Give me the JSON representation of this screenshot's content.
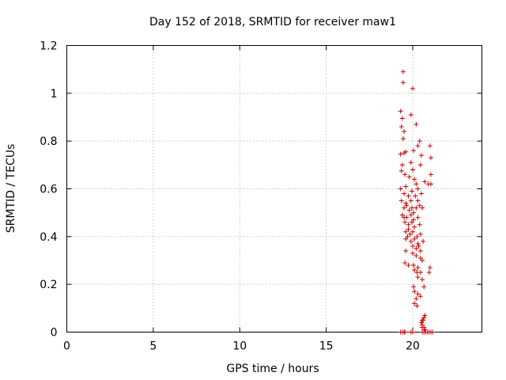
{
  "chart_data": {
    "type": "scatter",
    "title": "Day 152 of 2018, SRMTID for receiver maw1",
    "xlabel": "GPS time / hours",
    "ylabel": "SRMTID / TECUs",
    "xlim": [
      0,
      24
    ],
    "ylim": [
      0,
      1.2
    ],
    "xticks": [
      0,
      5,
      10,
      15,
      20
    ],
    "xtick_labels": [
      "0",
      "5",
      "10",
      "15",
      "20"
    ],
    "yticks": [
      0,
      0.2,
      0.4,
      0.6,
      0.8,
      1.0,
      1.2
    ],
    "ytick_labels": [
      "0",
      "0.2",
      "0.4",
      "0.6",
      "0.8",
      "1",
      "1.2"
    ],
    "grid": true,
    "marker": "+",
    "series": [
      {
        "name": "SRMTID",
        "color": "#cc0000",
        "x": [
          19.45,
          19.45,
          20.0,
          19.3,
          19.4,
          19.35,
          19.9,
          20.2,
          19.5,
          19.45,
          20.4,
          20.3,
          21.0,
          19.6,
          19.5,
          19.3,
          20.05,
          20.5,
          21.05,
          19.4,
          19.9,
          20.0,
          20.45,
          20.0,
          21.05,
          19.35,
          19.55,
          19.8,
          20.1,
          20.2,
          20.7,
          20.9,
          21.05,
          19.3,
          19.6,
          19.95,
          20.3,
          19.5,
          19.75,
          20.15,
          20.5,
          19.35,
          19.6,
          19.9,
          20.3,
          19.5,
          19.65,
          19.8,
          19.95,
          20.05,
          20.2,
          20.4,
          20.55,
          19.4,
          19.5,
          19.65,
          19.9,
          20.05,
          20.3,
          19.55,
          19.75,
          19.95,
          20.1,
          20.4,
          19.6,
          19.75,
          19.85,
          20.0,
          20.25,
          20.45,
          19.6,
          19.7,
          19.9,
          20.1,
          20.3,
          20.6,
          20.0,
          20.2,
          20.35,
          20.45,
          19.6,
          20.0,
          20.2,
          20.45,
          20.55,
          19.55,
          19.75,
          20.05,
          20.3,
          21.0,
          20.1,
          20.25,
          20.45,
          20.95,
          20.3,
          20.55,
          20.05,
          20.65,
          20.1,
          20.3,
          20.45,
          20.2,
          20.1,
          20.25,
          20.7,
          20.65,
          20.6,
          20.55,
          20.55,
          20.5,
          20.55,
          20.65,
          20.7,
          19.3,
          19.4,
          19.5,
          19.55,
          19.9,
          20.0,
          20.55,
          20.65,
          20.75,
          20.85,
          20.95,
          21.05,
          21.15
        ],
        "y": [
          1.09,
          1.045,
          1.02,
          0.925,
          0.895,
          0.86,
          0.91,
          0.87,
          0.84,
          0.81,
          0.8,
          0.78,
          0.78,
          0.755,
          0.75,
          0.745,
          0.76,
          0.74,
          0.73,
          0.7,
          0.71,
          0.68,
          0.7,
          0.68,
          0.66,
          0.675,
          0.66,
          0.65,
          0.64,
          0.62,
          0.63,
          0.62,
          0.62,
          0.6,
          0.61,
          0.59,
          0.6,
          0.58,
          0.57,
          0.57,
          0.58,
          0.55,
          0.54,
          0.55,
          0.55,
          0.52,
          0.53,
          0.51,
          0.52,
          0.5,
          0.52,
          0.53,
          0.52,
          0.49,
          0.48,
          0.48,
          0.49,
          0.47,
          0.48,
          0.46,
          0.45,
          0.46,
          0.44,
          0.45,
          0.42,
          0.43,
          0.41,
          0.42,
          0.4,
          0.41,
          0.39,
          0.4,
          0.38,
          0.39,
          0.37,
          0.38,
          0.36,
          0.35,
          0.36,
          0.34,
          0.34,
          0.33,
          0.32,
          0.31,
          0.3,
          0.29,
          0.28,
          0.28,
          0.27,
          0.27,
          0.26,
          0.25,
          0.25,
          0.25,
          0.23,
          0.22,
          0.19,
          0.19,
          0.17,
          0.16,
          0.15,
          0.14,
          0.12,
          0.11,
          0.07,
          0.06,
          0.05,
          0.05,
          0.03,
          0.04,
          0.02,
          0.02,
          0.01,
          0.0,
          0.0,
          0.0,
          0.0,
          0.0,
          0.0,
          0.0,
          0.0,
          0.0,
          0.0,
          0.0,
          0.0,
          0.0
        ]
      }
    ]
  }
}
